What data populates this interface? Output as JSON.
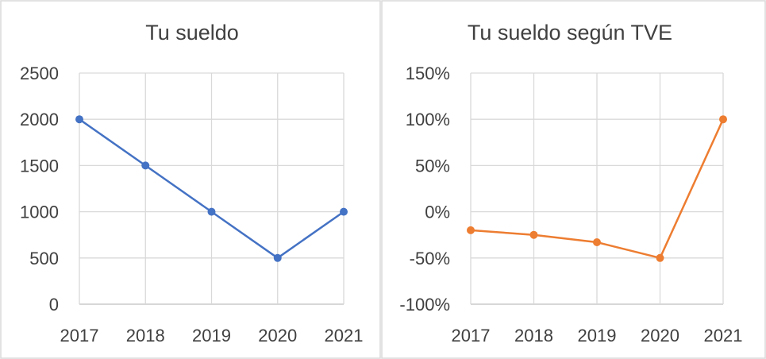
{
  "chart_data": [
    {
      "type": "line",
      "title": "Tu sueldo",
      "categories": [
        "2017",
        "2018",
        "2019",
        "2020",
        "2021"
      ],
      "series": [
        {
          "values": [
            2000,
            1500,
            1000,
            500,
            1000
          ],
          "color": "#4472c4"
        }
      ],
      "ylim": [
        0,
        2500
      ],
      "yticks": [
        0,
        500,
        1000,
        1500,
        2000,
        2500
      ],
      "ytick_labels": [
        "0",
        "500",
        "1000",
        "1500",
        "2000",
        "2500"
      ],
      "grid": true,
      "legend": "none"
    },
    {
      "type": "line",
      "title": "Tu sueldo según TVE",
      "categories": [
        "2017",
        "2018",
        "2019",
        "2020",
        "2021"
      ],
      "series": [
        {
          "values": [
            -20,
            -25,
            -33,
            -50,
            100
          ],
          "color": "#ed7d31"
        }
      ],
      "ylim": [
        -100,
        150
      ],
      "yticks": [
        -100,
        -50,
        0,
        50,
        100,
        150
      ],
      "ytick_labels": [
        "-100%",
        "-50%",
        "0%",
        "50%",
        "100%",
        "150%"
      ],
      "grid": true,
      "legend": "none"
    }
  ]
}
